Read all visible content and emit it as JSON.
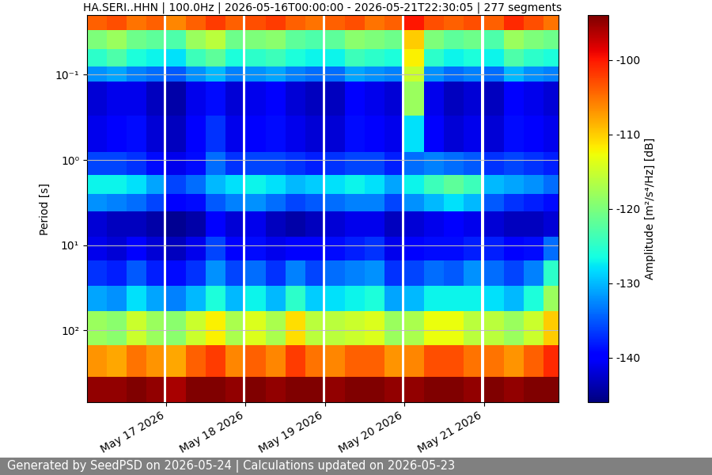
{
  "chart_data": {
    "type": "heatmap",
    "title": "HA.SERI..HHN | 100.0Hz | 2026-05-16T00:00:00 - 2026-05-21T22:30:05 | 277 segments",
    "y_label": "Period [s]",
    "footer": "Generated by SeedPSD on 2026-05-24 | Calculations updated on 2026-05-23",
    "log": "y",
    "grid": true,
    "xlim": [
      "2026-05-16T00:00:00",
      "2026-05-21T22:30:05"
    ],
    "xticks": [
      {
        "value": "2026-05-17T00:00:00",
        "label": "May 17 2026"
      },
      {
        "value": "2026-05-18T00:00:00",
        "label": "May 18 2026"
      },
      {
        "value": "2026-05-19T00:00:00",
        "label": "May 19 2026"
      },
      {
        "value": "2026-05-20T00:00:00",
        "label": "May 20 2026"
      },
      {
        "value": "2026-05-21T00:00:00",
        "label": "May 21 2026"
      }
    ],
    "ylim": [
      700,
      0.02
    ],
    "yticks": [
      {
        "value": 0.1,
        "label": "10⁻¹"
      },
      {
        "value": 1,
        "label": "10⁰"
      },
      {
        "value": 10,
        "label": "10¹"
      },
      {
        "value": 100,
        "label": "10²"
      }
    ],
    "time_edges": [
      "2026-05-16T00:00:00",
      "2026-05-16T06:00:00",
      "2026-05-16T12:00:00",
      "2026-05-16T18:00:00",
      "2026-05-16T23:15:00",
      "2026-05-17T00:00:00",
      "2026-05-17T06:00:00",
      "2026-05-17T12:00:00",
      "2026-05-17T18:00:00",
      "2026-05-17T23:15:00",
      "2026-05-18T00:00:00",
      "2026-05-18T06:00:00",
      "2026-05-18T12:00:00",
      "2026-05-18T18:00:00",
      "2026-05-18T23:15:00",
      "2026-05-19T00:00:00",
      "2026-05-19T06:00:00",
      "2026-05-19T12:00:00",
      "2026-05-19T18:00:00",
      "2026-05-19T23:15:00",
      "2026-05-20T00:00:00",
      "2026-05-20T06:00:00",
      "2026-05-20T12:00:00",
      "2026-05-20T18:00:00",
      "2026-05-20T23:15:00",
      "2026-05-21T00:00:00",
      "2026-05-21T06:00:00",
      "2026-05-21T12:00:00",
      "2026-05-21T18:00:00",
      "2026-05-21T22:30:05"
    ],
    "period_edges": [
      0.02,
      0.03,
      0.05,
      0.08,
      0.12,
      0.3,
      0.8,
      1.5,
      2.5,
      4,
      8,
      15,
      30,
      60,
      150,
      350,
      700
    ],
    "cells": [
      [
        -104,
        -103,
        -105,
        -104,
        null,
        -106,
        -104,
        -102,
        -104,
        null,
        -103,
        -102,
        -104,
        -105,
        null,
        -104,
        -103,
        -105,
        -104,
        null,
        -100,
        -103,
        -104,
        -103,
        null,
        -104,
        -101,
        -103,
        -105
      ],
      [
        -120,
        -118,
        -121,
        -122,
        null,
        -123,
        -118,
        -116,
        -121,
        null,
        -120,
        -119,
        -122,
        -123,
        null,
        -122,
        -119,
        -120,
        -121,
        null,
        -110,
        -120,
        -122,
        -121,
        null,
        -123,
        -118,
        -120,
        -121
      ],
      [
        -125,
        -123,
        -126,
        -127,
        null,
        -128,
        -124,
        -122,
        -126,
        null,
        -125,
        -124,
        -126,
        -127,
        null,
        -127,
        -124,
        -125,
        -126,
        null,
        -112,
        -125,
        -127,
        -126,
        null,
        -127,
        -123,
        -125,
        -126
      ],
      [
        -132,
        -131,
        -133,
        -134,
        null,
        -135,
        -132,
        -130,
        -133,
        null,
        -132,
        -131,
        -133,
        -134,
        null,
        -134,
        -131,
        -132,
        -133,
        null,
        -115,
        -132,
        -134,
        -133,
        null,
        -134,
        -130,
        -132,
        -133
      ],
      [
        -142,
        -141,
        -141,
        -143,
        null,
        -144,
        -141,
        -139,
        -142,
        null,
        -141,
        -140,
        -142,
        -143,
        null,
        -143,
        -140,
        -141,
        -142,
        null,
        -118,
        -141,
        -143,
        -142,
        null,
        -143,
        -140,
        -141,
        -142
      ],
      [
        -141,
        -140,
        -139,
        -142,
        null,
        -143,
        -140,
        -137,
        -141,
        null,
        -140,
        -139,
        -141,
        -142,
        null,
        -142,
        -139,
        -140,
        -141,
        null,
        -128,
        -140,
        -142,
        -141,
        null,
        -142,
        -139,
        -140,
        -141
      ],
      [
        -136,
        -136,
        -137,
        -139,
        null,
        -141,
        -139,
        -134,
        -137,
        null,
        -136,
        -136,
        -137,
        -138,
        null,
        -137,
        -136,
        -136,
        -138,
        null,
        -134,
        -133,
        -134,
        -135,
        null,
        -137,
        -136,
        -137,
        -138
      ],
      [
        -127,
        -127,
        -128,
        -131,
        null,
        -136,
        -134,
        -130,
        -128,
        null,
        -127,
        -128,
        -130,
        -129,
        null,
        -128,
        -127,
        -128,
        -131,
        null,
        -127,
        -124,
        -122,
        -124,
        null,
        -130,
        -131,
        -132,
        -134
      ],
      [
        -132,
        -133,
        -134,
        -136,
        null,
        -140,
        -139,
        -135,
        -133,
        null,
        -132,
        -134,
        -136,
        -135,
        null,
        -134,
        -133,
        -133,
        -136,
        null,
        -132,
        -130,
        -128,
        -130,
        null,
        -135,
        -137,
        -138,
        -139
      ],
      [
        -142,
        -143,
        -143,
        -144,
        null,
        -145,
        -144,
        -140,
        -142,
        null,
        -141,
        -143,
        -144,
        -143,
        null,
        -142,
        -141,
        -141,
        -143,
        null,
        -142,
        -141,
        -140,
        -141,
        null,
        -142,
        -143,
        -143,
        -142
      ],
      [
        -141,
        -142,
        -140,
        -142,
        null,
        -143,
        -141,
        -136,
        -140,
        null,
        -139,
        -141,
        -140,
        -140,
        null,
        -139,
        -138,
        -137,
        -141,
        null,
        -140,
        -139,
        -139,
        -138,
        null,
        -138,
        -140,
        -139,
        -134
      ],
      [
        -137,
        -138,
        -135,
        -138,
        null,
        -139,
        -137,
        -132,
        -136,
        null,
        -134,
        -137,
        -133,
        -136,
        null,
        -134,
        -133,
        -132,
        -137,
        null,
        -136,
        -134,
        -135,
        -132,
        null,
        -134,
        -136,
        -133,
        -125
      ],
      [
        -131,
        -132,
        -128,
        -131,
        null,
        -133,
        -130,
        -126,
        -130,
        null,
        -127,
        -130,
        -125,
        -129,
        null,
        -128,
        -127,
        -126,
        -131,
        null,
        -130,
        -127,
        -127,
        -127,
        null,
        -128,
        -130,
        -126,
        -118
      ],
      [
        -118,
        -119,
        -115,
        -118,
        null,
        -119,
        -115,
        -112,
        -117,
        null,
        -114,
        -117,
        -111,
        -116,
        null,
        -116,
        -115,
        -114,
        -118,
        null,
        -117,
        -113,
        -113,
        -116,
        null,
        -116,
        -118,
        -115,
        -110
      ],
      [
        -107,
        -108,
        -105,
        -107,
        null,
        -108,
        -104,
        -102,
        -106,
        null,
        -104,
        -106,
        -102,
        -105,
        null,
        -106,
        -104,
        -104,
        -107,
        null,
        -106,
        -103,
        -103,
        -105,
        null,
        -105,
        -107,
        -104,
        -101
      ],
      [
        -95,
        -95,
        -94,
        -95,
        null,
        -96,
        -94,
        -93,
        -95,
        null,
        -94,
        -95,
        -93,
        -94,
        null,
        -95,
        -94,
        -94,
        -95,
        null,
        -95,
        -94,
        -94,
        -95,
        null,
        -94,
        -95,
        -94,
        -93
      ]
    ],
    "colorbar": {
      "label": "Amplitude [m²/s⁴/Hz] [dB]",
      "range": [
        -146,
        -94
      ],
      "ticks": [
        -140,
        -130,
        -120,
        -110,
        -100
      ]
    }
  }
}
